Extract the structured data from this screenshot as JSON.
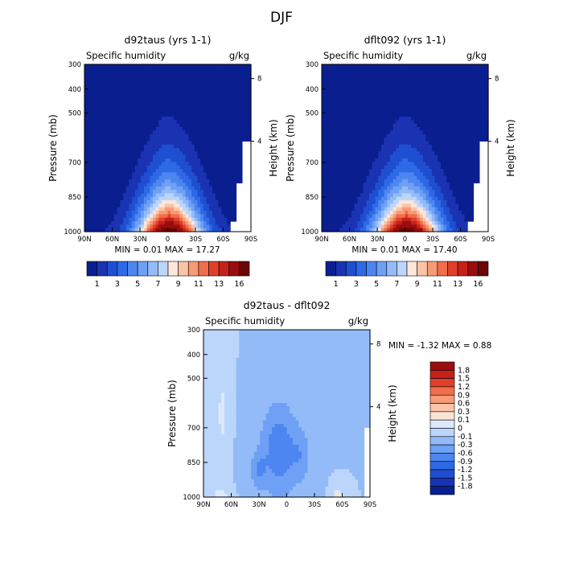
{
  "figure_title": "DJF",
  "chart_data": [
    {
      "id": "panel_left",
      "type": "heatmap",
      "title": "d92taus (yrs 1-1)",
      "subtitle": "Specific humidity",
      "units": "g/kg",
      "ylabel": "Pressure (mb)",
      "ylabel_right": "Height (km)",
      "x_ticks": [
        "90N",
        "60N",
        "30N",
        "0",
        "30S",
        "60S",
        "90S"
      ],
      "y_ticks": [
        "300",
        "400",
        "500",
        "700",
        "850",
        "1000"
      ],
      "y_ticks_right": [
        "8",
        "4"
      ],
      "stats": "MIN =    0.01    MAX =   17.27",
      "colorbar_labels": [
        "1",
        "3",
        "5",
        "7",
        "9",
        "11",
        "13",
        "16"
      ],
      "levels": [
        1,
        2,
        3,
        4,
        5,
        6,
        7,
        8,
        9,
        10,
        11,
        12,
        13,
        14,
        16
      ],
      "min": 0.01,
      "max": 17.27,
      "palette": [
        "#0a1f8f",
        "#1a33b3",
        "#1f4fd1",
        "#2e69e6",
        "#4d86f0",
        "#6ea0f5",
        "#93bbf8",
        "#bcd6fb",
        "#ffe6d9",
        "#fbc4a8",
        "#f79b76",
        "#f06e4b",
        "#e0402a",
        "#c4211a",
        "#980d0d",
        "#6b0707"
      ]
    },
    {
      "id": "panel_right",
      "type": "heatmap",
      "title": "dflt092 (yrs 1-1)",
      "subtitle": "Specific humidity",
      "units": "g/kg",
      "ylabel": "Pressure (mb)",
      "ylabel_right": "Height (km)",
      "x_ticks": [
        "90N",
        "60N",
        "30N",
        "0",
        "30S",
        "60S",
        "90S"
      ],
      "y_ticks": [
        "300",
        "400",
        "500",
        "700",
        "850",
        "1000"
      ],
      "y_ticks_right": [
        "8",
        "4"
      ],
      "stats": "MIN =    0.01    MAX =   17.40",
      "colorbar_labels": [
        "1",
        "3",
        "5",
        "7",
        "9",
        "11",
        "13",
        "16"
      ],
      "levels": [
        1,
        2,
        3,
        4,
        5,
        6,
        7,
        8,
        9,
        10,
        11,
        12,
        13,
        14,
        16
      ],
      "min": 0.01,
      "max": 17.4,
      "palette": [
        "#0a1f8f",
        "#1a33b3",
        "#1f4fd1",
        "#2e69e6",
        "#4d86f0",
        "#6ea0f5",
        "#93bbf8",
        "#bcd6fb",
        "#ffe6d9",
        "#fbc4a8",
        "#f79b76",
        "#f06e4b",
        "#e0402a",
        "#c4211a",
        "#980d0d",
        "#6b0707"
      ]
    },
    {
      "id": "panel_diff",
      "type": "heatmap",
      "title": "d92taus - dflt092",
      "subtitle": "Specific humidity",
      "units": "g/kg",
      "ylabel": "Pressure (mb)",
      "ylabel_right": "Height (km)",
      "x_ticks": [
        "90N",
        "60N",
        "30N",
        "0",
        "30S",
        "60S",
        "90S"
      ],
      "y_ticks": [
        "300",
        "400",
        "500",
        "700",
        "850",
        "1000"
      ],
      "y_ticks_right": [
        "8",
        "4"
      ],
      "stats": "MIN =   -1.32    MAX =    0.88",
      "colorbar_labels": [
        "1.8",
        "1.5",
        "1.2",
        "0.9",
        "0.6",
        "0.3",
        "0.1",
        "0",
        "-0.1",
        "-0.3",
        "-0.6",
        "-0.9",
        "-1.2",
        "-1.5",
        "-1.8"
      ],
      "levels": [
        -1.8,
        -1.5,
        -1.2,
        -0.9,
        -0.6,
        -0.3,
        -0.1,
        0,
        0.1,
        0.3,
        0.6,
        0.9,
        1.2,
        1.5,
        1.8
      ],
      "min": -1.32,
      "max": 0.88,
      "palette": [
        "#0a1f8f",
        "#1a33b3",
        "#1f4fd1",
        "#2e69e6",
        "#4d86f0",
        "#6ea0f5",
        "#93bbf8",
        "#bcd6fb",
        "#dde9fb",
        "#fbe3d3",
        "#fbc4a8",
        "#f79b76",
        "#f06e4b",
        "#e0402a",
        "#c4211a",
        "#980d0d"
      ]
    }
  ]
}
